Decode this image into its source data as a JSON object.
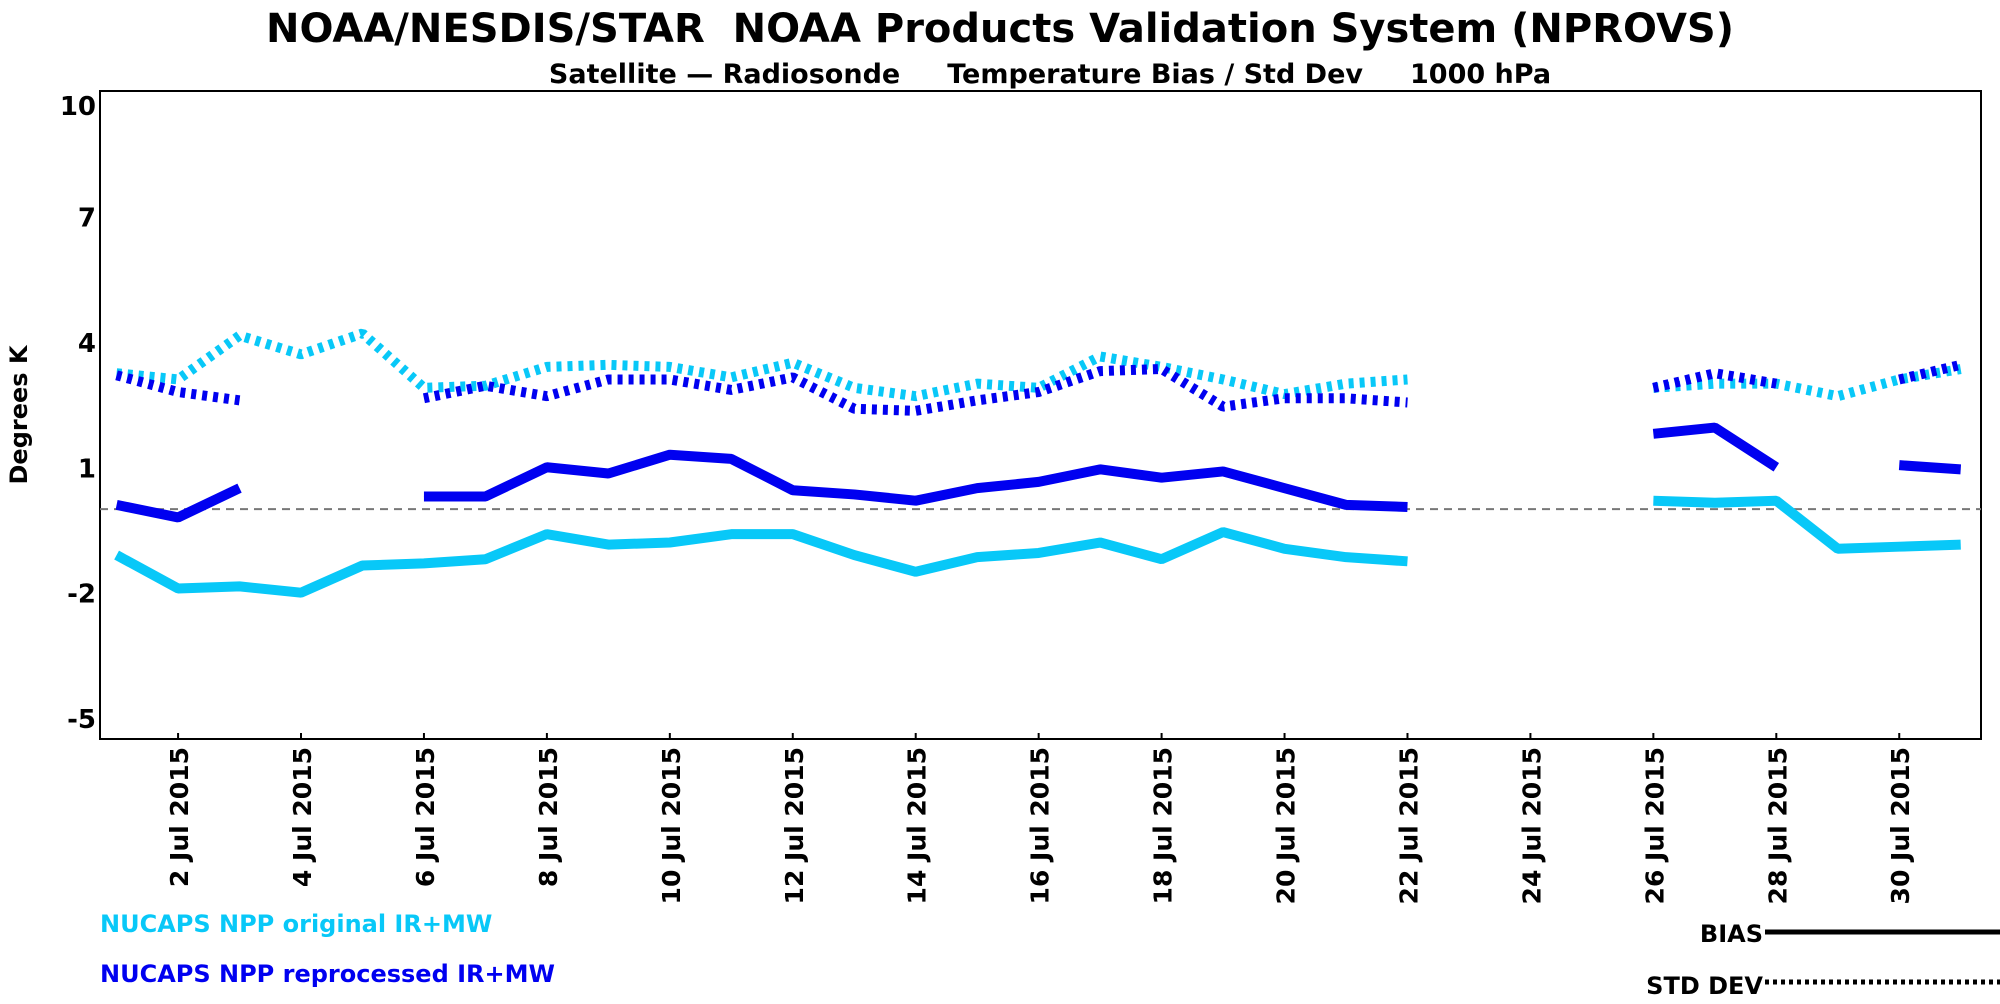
{
  "chart_data": {
    "type": "line",
    "title": "NOAA/NESDIS/STAR  NOAA Products Validation System (NPROVS)",
    "subtitle": "Satellite — Radiosonde     Temperature Bias / Std Dev     1000 hPa",
    "xlabel": "",
    "ylabel": "Degrees K",
    "ylim": [
      -5.5,
      10
    ],
    "xlim_day_of_july_2015": [
      0.73,
      31.33
    ],
    "y_ticks": [
      10,
      7,
      4,
      1,
      -2,
      -5
    ],
    "x_ticks": [
      {
        "day": 2,
        "label": "2 Jul 2015"
      },
      {
        "day": 4,
        "label": "4 Jul 2015"
      },
      {
        "day": 6,
        "label": "6 Jul 2015"
      },
      {
        "day": 8,
        "label": "8 Jul 2015"
      },
      {
        "day": 10,
        "label": "10 Jul 2015"
      },
      {
        "day": 12,
        "label": "12 Jul 2015"
      },
      {
        "day": 14,
        "label": "14 Jul 2015"
      },
      {
        "day": 16,
        "label": "16 Jul 2015"
      },
      {
        "day": 18,
        "label": "18 Jul 2015"
      },
      {
        "day": 20,
        "label": "20 Jul 2015"
      },
      {
        "day": 22,
        "label": "22 Jul 2015"
      },
      {
        "day": 24,
        "label": "24 Jul 2015"
      },
      {
        "day": 26,
        "label": "26 Jul 2015"
      },
      {
        "day": 28,
        "label": "28 Jul 2015"
      },
      {
        "day": 30,
        "label": "30 Jul 2015"
      }
    ],
    "grid": false,
    "zero_line": true,
    "x_days": [
      1,
      2,
      3,
      4,
      5,
      6,
      7,
      8,
      9,
      10,
      11,
      12,
      13,
      14,
      15,
      16,
      17,
      18,
      19,
      20,
      21,
      22,
      23,
      24,
      25,
      26,
      27,
      28,
      29,
      30,
      31
    ],
    "series": [
      {
        "name": "NUCAPS NPP original IR+MW",
        "stat": "BIAS",
        "color": "#08c8f8",
        "style": "solid",
        "values": [
          -1.1,
          -1.9,
          -1.85,
          -2.0,
          -1.35,
          -1.3,
          -1.2,
          -0.6,
          -0.85,
          -0.8,
          -0.6,
          -0.6,
          -1.1,
          -1.5,
          -1.15,
          -1.05,
          -0.8,
          -1.2,
          -0.55,
          -0.95,
          -1.15,
          -1.25,
          null,
          null,
          null,
          0.2,
          0.15,
          0.2,
          -0.95,
          -0.9,
          -0.85
        ]
      },
      {
        "name": "NUCAPS NPP reprocessed IR+MW",
        "stat": "BIAS",
        "color": "#0000f0",
        "style": "solid",
        "values": [
          0.1,
          -0.2,
          0.5,
          null,
          null,
          0.3,
          0.3,
          1.0,
          0.85,
          1.3,
          1.2,
          0.45,
          0.35,
          0.2,
          0.5,
          0.65,
          0.95,
          0.75,
          0.9,
          0.5,
          0.1,
          0.05,
          null,
          null,
          null,
          1.8,
          1.95,
          1.0,
          null,
          1.05,
          0.95
        ]
      },
      {
        "name": "NUCAPS NPP original IR+MW",
        "stat": "STD DEV",
        "color": "#08c8f8",
        "style": "dotted",
        "values": [
          3.25,
          3.1,
          4.15,
          3.7,
          4.2,
          2.9,
          2.95,
          3.4,
          3.45,
          3.4,
          3.15,
          3.5,
          2.9,
          2.7,
          3.0,
          2.9,
          3.65,
          3.4,
          3.1,
          2.75,
          3.0,
          3.1,
          null,
          null,
          null,
          2.9,
          3.0,
          3.0,
          2.7,
          3.1,
          3.35
        ]
      },
      {
        "name": "NUCAPS NPP reprocessed IR+MW",
        "stat": "STD DEV",
        "color": "#0000f0",
        "style": "dotted",
        "values": [
          3.2,
          2.8,
          2.6,
          null,
          null,
          2.65,
          2.95,
          2.7,
          3.1,
          3.1,
          2.85,
          3.15,
          2.4,
          2.35,
          2.6,
          2.8,
          3.3,
          3.35,
          2.45,
          2.65,
          2.65,
          2.55,
          null,
          null,
          null,
          2.9,
          3.25,
          3.0,
          null,
          3.1,
          3.45
        ]
      }
    ],
    "legend": {
      "placement": "bottom-left",
      "entries": [
        {
          "label": "NUCAPS NPP original IR+MW",
          "color": "#08c8f8"
        },
        {
          "label": "NUCAPS NPP reprocessed IR+MW",
          "color": "#0000f0"
        }
      ],
      "style_key": {
        "placement": "bottom-right",
        "bias_label": "BIAS",
        "std_label": "STD DEV"
      }
    }
  }
}
